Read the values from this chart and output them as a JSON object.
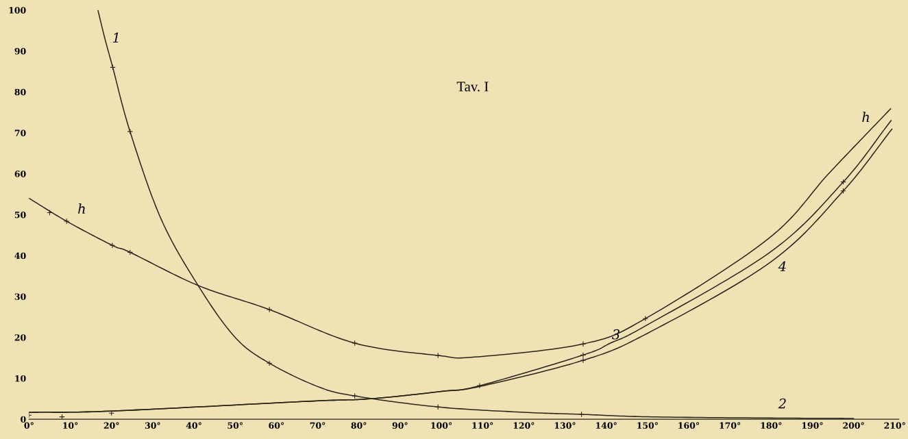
{
  "chart_data": {
    "type": "line",
    "title": "Tav. I",
    "series": [
      {
        "color": "#2a2418",
        "x": [
          0,
          9.1,
          20.2,
          24.5,
          41,
          58.3,
          79,
          99.2,
          108,
          134.4,
          149.5,
          179.3,
          194.2,
          209
        ],
        "values": [
          54,
          48.4,
          42.5,
          40.8,
          32.7,
          26.8,
          18.6,
          15.6,
          15.2,
          18.4,
          24.6,
          44.1,
          60.3,
          75.9
        ]
      },
      {
        "color": "#2a2418",
        "x": [
          16.7,
          18.4,
          20.3,
          24.5,
          32,
          41,
          50,
          58.3,
          70,
          79,
          99.2,
          120,
          134,
          150,
          180,
          200
        ],
        "values": [
          100,
          93,
          86,
          70.3,
          49,
          32.7,
          20,
          13.7,
          8,
          5.7,
          3.0,
          1.7,
          1.2,
          0.6,
          0.3,
          0.2
        ]
      },
      {
        "color": "#2a2418",
        "x": [
          0,
          19.9,
          67.9,
          82.8,
          100,
          109.3,
          134.4,
          141,
          149.5,
          180,
          197.5,
          209.1
        ],
        "values": [
          1.7,
          2.0,
          4.4,
          5.0,
          6.8,
          8.2,
          15.7,
          18.6,
          22.8,
          41,
          58,
          73
        ]
      },
      {
        "color": "#2a2418",
        "x": [
          0,
          19.9,
          67.9,
          82.8,
          100,
          109.3,
          134.4,
          150,
          180,
          197.5,
          209.3
        ],
        "values": [
          1.7,
          2.0,
          4.4,
          5.0,
          6.8,
          8.0,
          14.4,
          21,
          38.5,
          55.8,
          70.9
        ]
      },
      {
        "type": "scatter",
        "marker": "cross",
        "color": "#2a2418",
        "x": [
          5,
          9.1,
          20.2,
          24.5,
          58.3,
          79,
          99.2,
          134.4,
          149.5,
          20.3,
          24.5,
          58.3,
          79,
          99.2,
          134,
          0,
          8,
          20,
          109.3,
          134.4,
          134.4,
          197.5,
          197.5
        ],
        "values": [
          50.5,
          48.4,
          42.5,
          40.8,
          26.8,
          18.6,
          15.6,
          18.4,
          24.6,
          86,
          70.3,
          13.7,
          5.7,
          3.0,
          1.2,
          1,
          0.6,
          1.5,
          8.2,
          15.7,
          14.4,
          58,
          55.8
        ]
      }
    ],
    "xlim": [
      0,
      211
    ],
    "ylim": [
      0,
      100
    ],
    "xticks": [
      {
        "value": 0,
        "label": "0°"
      },
      {
        "value": 10,
        "label": "10°"
      },
      {
        "value": 20,
        "label": "20°"
      },
      {
        "value": 30,
        "label": "30°"
      },
      {
        "value": 40,
        "label": "40°"
      },
      {
        "value": 50,
        "label": "50°"
      },
      {
        "value": 60,
        "label": "60°"
      },
      {
        "value": 70,
        "label": "70°"
      },
      {
        "value": 80,
        "label": "80°"
      },
      {
        "value": 90,
        "label": "90°"
      },
      {
        "value": 100,
        "label": "100°"
      },
      {
        "value": 110,
        "label": "110°"
      },
      {
        "value": 120,
        "label": "120°"
      },
      {
        "value": 130,
        "label": "130°"
      },
      {
        "value": 140,
        "label": "140°"
      },
      {
        "value": 150,
        "label": "150°"
      },
      {
        "value": 160,
        "label": "160°"
      },
      {
        "value": 170,
        "label": "170°"
      },
      {
        "value": 180,
        "label": "180°"
      },
      {
        "value": 190,
        "label": "190°"
      },
      {
        "value": 200,
        "label": "200°"
      },
      {
        "value": 210,
        "label": "210°"
      }
    ],
    "yticks": [
      0,
      10,
      20,
      30,
      40,
      50,
      60,
      70,
      80,
      90,
      100
    ],
    "grid": false,
    "annotations": [
      {
        "text": "1",
        "x": 18.4,
        "y": 93
      },
      {
        "text": "h",
        "x": 9.1,
        "y": 48.4
      },
      {
        "text": "h",
        "x": 209,
        "y": 75.9
      },
      {
        "text": "2",
        "x": 180,
        "y": 0.3
      },
      {
        "text": "3",
        "x": 141,
        "y": 18.6
      },
      {
        "text": "4",
        "x": 180,
        "y": 38.5
      }
    ]
  }
}
